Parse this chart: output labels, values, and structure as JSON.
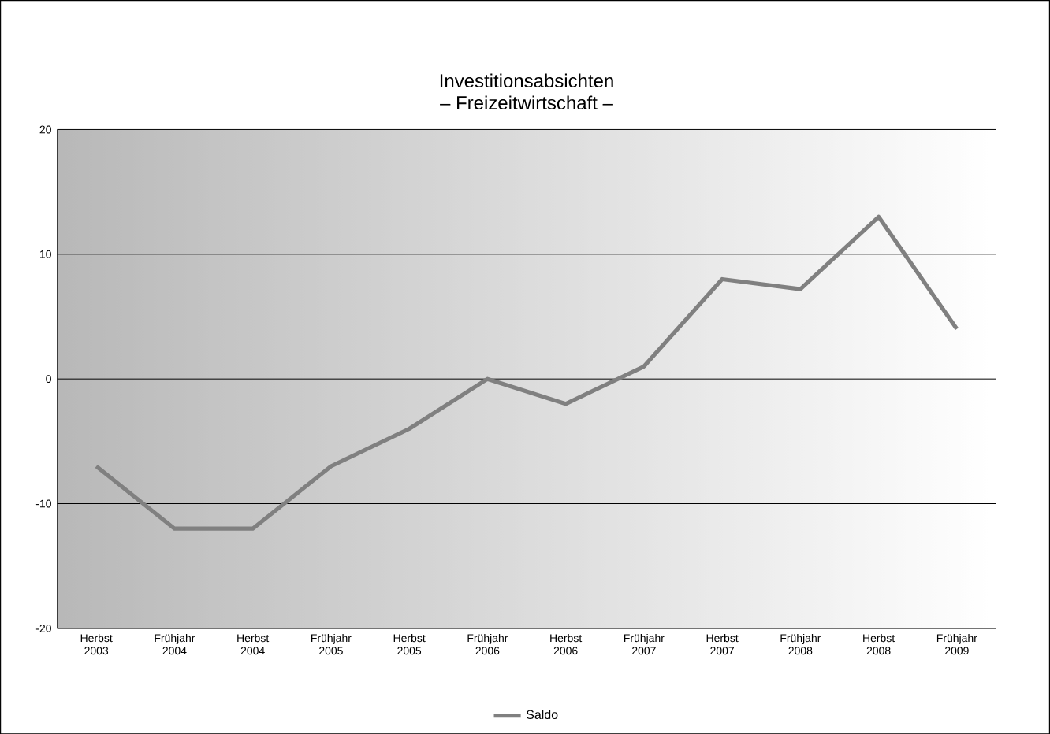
{
  "chart_data": {
    "type": "line",
    "title": "Investitionsabsichten",
    "subtitle": "– Freizeitwirtschaft –",
    "categories": [
      "Herbst 2003",
      "Frühjahr 2004",
      "Herbst 2004",
      "Frühjahr 2005",
      "Herbst 2005",
      "Frühjahr 2006",
      "Herbst 2006",
      "Frühjahr 2007",
      "Herbst 2007",
      "Frühjahr 2008",
      "Herbst 2008",
      "Frühjahr 2009"
    ],
    "series": [
      {
        "name": "Saldo",
        "color": "#808080",
        "values": [
          -7,
          -12,
          -12,
          -7,
          -4,
          0,
          -2,
          1,
          8,
          7.2,
          13,
          4
        ]
      }
    ],
    "ylim": [
      -20,
      20
    ],
    "yticks": [
      -20,
      -10,
      0,
      10,
      20
    ],
    "grid": "y",
    "legend": "bottom",
    "marker": "none",
    "line_style": "solid"
  }
}
